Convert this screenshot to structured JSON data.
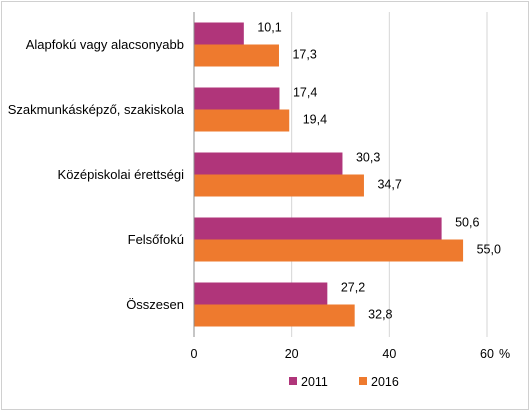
{
  "chart_data": {
    "type": "bar",
    "orientation": "horizontal",
    "categories": [
      "Alapfokú vagy alacsonyabb",
      "Szakmunkásképző, szakiskola",
      "Középiskolai érettségi",
      "Felsőfokú",
      "Összesen"
    ],
    "series": [
      {
        "name": "2011",
        "color": "#B0357A",
        "values": [
          10.1,
          17.4,
          30.3,
          50.6,
          27.2
        ],
        "labels": [
          "10,1",
          "17,4",
          "30,3",
          "50,6",
          "27,2"
        ]
      },
      {
        "name": "2016",
        "color": "#EE7A2E",
        "values": [
          17.3,
          19.4,
          34.7,
          55.0,
          32.8
        ],
        "labels": [
          "17,3",
          "19,4",
          "34,7",
          "55,0",
          "32,8"
        ]
      }
    ],
    "xlim": [
      0,
      60
    ],
    "ticks": [
      0,
      20,
      40,
      60
    ],
    "tick_labels": [
      "0",
      "20",
      "40",
      "60"
    ],
    "x_unit": "%",
    "grid": "vertical",
    "legend": "bottom"
  }
}
